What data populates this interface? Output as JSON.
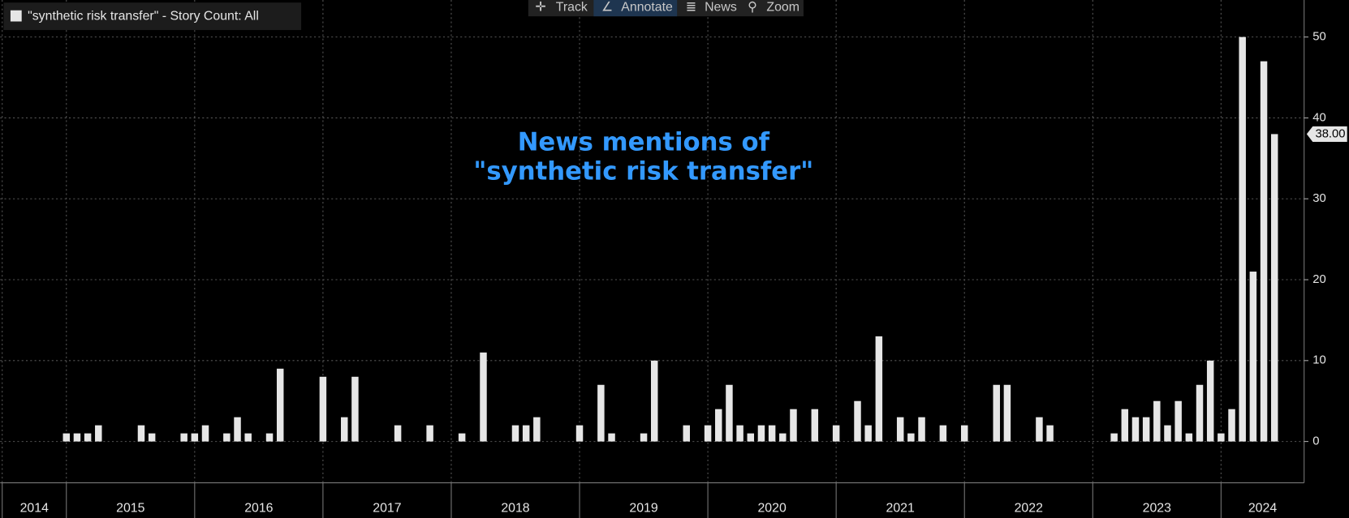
{
  "toolbar": [
    "Track",
    "Annotate",
    "News",
    "Zoom"
  ],
  "chart_data": {
    "type": "bar",
    "annotation": [
      "News mentions of",
      "\"synthetic risk transfer\""
    ],
    "categories": [
      null,
      null,
      null,
      null,
      null,
      null,
      null,
      null,
      null,
      null,
      null,
      null,
      null,
      null,
      null,
      null,
      null,
      null,
      null,
      null,
      null,
      null,
      null,
      null,
      null,
      null,
      null,
      null,
      null,
      null,
      null,
      null,
      null,
      null,
      null,
      null,
      null,
      null,
      null,
      null,
      null,
      null,
      null,
      null,
      null,
      null,
      null,
      null,
      null,
      null,
      null,
      null,
      null,
      null,
      null,
      null,
      null,
      null,
      null,
      null,
      null,
      null,
      null,
      null,
      null,
      null,
      null,
      null,
      null,
      null,
      null,
      null,
      null,
      null,
      null,
      null,
      null,
      null,
      null,
      null,
      null,
      null,
      null,
      null,
      null,
      null,
      null,
      null,
      null,
      null,
      null,
      null,
      null,
      null,
      null,
      null,
      null,
      null,
      null,
      null,
      null,
      null,
      null,
      null,
      null,
      null,
      null,
      null,
      null,
      null,
      null,
      null,
      null,
      null,
      null,
      null,
      null,
      null,
      null,
      null
    ],
    "series": [
      {
        "name": "\"synthetic risk transfer\" - Story Count: All",
        "color": "#e6e6e6",
        "values": [
          0,
          0,
          0,
          0,
          0,
          0,
          1,
          1,
          1,
          2,
          0,
          0,
          0,
          2,
          1,
          0,
          0,
          1,
          1,
          2,
          0,
          1,
          3,
          1,
          0,
          1,
          9,
          0,
          0,
          0,
          8,
          0,
          3,
          8,
          0,
          0,
          0,
          2,
          0,
          0,
          2,
          0,
          0,
          1,
          0,
          11,
          0,
          0,
          2,
          2,
          3,
          0,
          0,
          0,
          2,
          0,
          7,
          1,
          0,
          0,
          1,
          10,
          0,
          0,
          2,
          0,
          2,
          4,
          7,
          2,
          1,
          2,
          2,
          1,
          4,
          0,
          4,
          0,
          2,
          0,
          5,
          2,
          13,
          0,
          3,
          1,
          3,
          0,
          2,
          0,
          2,
          0,
          0,
          7,
          7,
          0,
          0,
          3,
          2,
          0,
          0,
          0,
          0,
          0,
          1,
          4,
          3,
          3,
          5,
          2,
          5,
          1,
          7,
          10,
          1,
          4,
          50,
          21,
          47,
          38
        ],
        "value_labels": [
          null,
          null,
          null,
          null,
          null,
          null,
          null,
          null,
          null,
          null,
          null,
          null,
          null,
          null,
          null,
          null,
          null,
          null,
          null,
          null,
          null,
          null,
          null,
          null,
          null,
          null,
          null,
          null,
          null,
          null,
          null,
          null,
          null,
          null,
          null,
          null,
          null,
          null,
          null,
          null,
          null,
          null,
          null,
          null,
          null,
          null,
          null,
          null,
          null,
          null,
          null,
          null,
          null,
          null,
          null,
          null,
          null,
          null,
          null,
          null,
          null,
          null,
          null,
          null,
          null,
          null,
          null,
          null,
          null,
          null,
          null,
          null,
          null,
          null,
          null,
          null,
          null,
          null,
          null,
          null,
          null,
          null,
          null,
          null,
          null,
          null,
          null,
          null,
          null,
          null,
          null,
          null,
          null,
          null,
          null,
          null,
          null,
          null,
          null,
          null,
          null,
          null,
          null,
          null,
          null,
          null,
          null,
          null,
          null,
          null,
          null,
          null,
          null,
          null,
          null,
          null,
          null,
          null,
          null,
          "38.00"
        ]
      }
    ],
    "xticks": [
      {
        "value": 0,
        "label": "2014"
      },
      {
        "value": 6,
        "label": "2015"
      },
      {
        "value": 18,
        "label": "2016"
      },
      {
        "value": 30,
        "label": "2017"
      },
      {
        "value": 42,
        "label": "2018"
      },
      {
        "value": 54,
        "label": "2019"
      },
      {
        "value": 66,
        "label": "2020"
      },
      {
        "value": 78,
        "label": "2021"
      },
      {
        "value": 90,
        "label": "2022"
      },
      {
        "value": 102,
        "label": "2023"
      },
      {
        "value": 114,
        "label": "2024"
      }
    ],
    "ylim": [
      -5,
      55
    ],
    "yticks": [
      0,
      10,
      20,
      30,
      40,
      50
    ],
    "grid": true
  }
}
